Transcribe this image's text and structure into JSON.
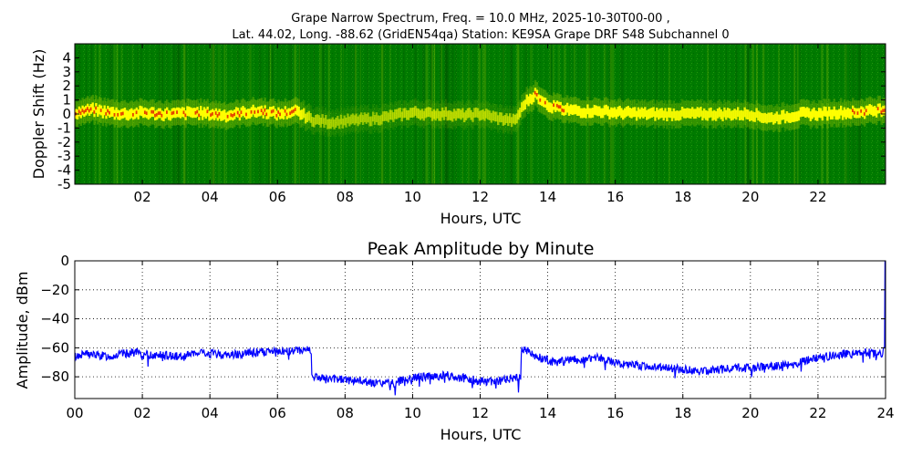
{
  "chart_data": [
    {
      "type": "heatmap",
      "title_line1": "Grape Narrow Spectrum, Freq. = 10.0 MHz, 2025-10-30T00-00 ,",
      "title_line2": "Lat.  44.02, Long. -88.62 (GridEN54qa) Station: KE9SA Grape DRF S48 Subchannel 0",
      "xlabel": "Hours, UTC",
      "ylabel": "Doppler Shift (Hz)",
      "xlim": [
        0,
        24
      ],
      "ylim": [
        -5,
        5
      ],
      "x_ticks": [
        2,
        4,
        6,
        8,
        10,
        12,
        14,
        16,
        18,
        20,
        22
      ],
      "x_tick_labels": [
        "02",
        "04",
        "06",
        "08",
        "10",
        "12",
        "14",
        "16",
        "18",
        "20",
        "22"
      ],
      "y_ticks": [
        4,
        3,
        2,
        1,
        0,
        -1,
        -2,
        -3,
        -4,
        -5
      ],
      "y_tick_labels": [
        "4",
        "3",
        "2",
        "1",
        "0",
        "-1",
        "-2",
        "-3",
        "-4",
        "-5"
      ],
      "colors": {
        "background": "#007a00",
        "mid": "#a8d000",
        "peak": "#ffff00",
        "core": "#e02000"
      },
      "trace": {
        "hours": [
          0,
          0.5,
          1,
          1.5,
          2,
          2.5,
          3,
          3.5,
          4,
          4.5,
          5,
          5.5,
          6,
          6.5,
          7,
          7.5,
          8,
          8.5,
          9,
          9.5,
          10,
          10.5,
          11,
          11.5,
          12,
          12.5,
          13,
          13.3,
          13.6,
          14,
          14.5,
          15,
          15.5,
          16,
          17,
          18,
          19,
          20,
          20.5,
          21,
          21.5,
          22,
          22.5,
          23,
          23.5,
          23.8
        ],
        "doppler": [
          0.1,
          0.3,
          0.1,
          0.0,
          0.1,
          0.0,
          0.0,
          0.1,
          0.0,
          -0.1,
          0.1,
          0.2,
          0.0,
          0.2,
          -0.4,
          -0.6,
          -0.5,
          -0.4,
          -0.3,
          -0.1,
          0.1,
          0.0,
          0.0,
          -0.1,
          0.0,
          -0.3,
          -0.5,
          0.8,
          1.4,
          0.6,
          0.3,
          0.2,
          0.2,
          0.1,
          0.0,
          0.0,
          0.0,
          0.0,
          -0.3,
          -0.2,
          0.0,
          0.0,
          0.1,
          0.1,
          0.2,
          0.3
        ],
        "strength": [
          0.9,
          0.95,
          0.9,
          0.9,
          0.9,
          0.9,
          0.9,
          0.9,
          0.9,
          0.85,
          0.9,
          0.95,
          0.9,
          0.9,
          0.35,
          0.3,
          0.3,
          0.3,
          0.3,
          0.35,
          0.4,
          0.4,
          0.4,
          0.4,
          0.35,
          0.35,
          0.4,
          0.7,
          0.85,
          0.9,
          0.85,
          0.85,
          0.85,
          0.8,
          0.75,
          0.7,
          0.7,
          0.7,
          0.7,
          0.75,
          0.8,
          0.8,
          0.85,
          0.85,
          0.9,
          0.9
        ]
      }
    },
    {
      "type": "line",
      "title": "Peak Amplitude by Minute",
      "xlabel": "Hours, UTC",
      "ylabel": "Amplitude, dBm",
      "xlim": [
        0,
        24
      ],
      "ylim": [
        -95,
        0
      ],
      "grid": true,
      "x_ticks": [
        0,
        2,
        4,
        6,
        8,
        10,
        12,
        14,
        16,
        18,
        20,
        22,
        24
      ],
      "x_tick_labels": [
        "00",
        "02",
        "04",
        "06",
        "08",
        "10",
        "12",
        "14",
        "16",
        "18",
        "20",
        "22",
        "24"
      ],
      "y_ticks": [
        0,
        -20,
        -40,
        -60,
        -80
      ],
      "y_tick_labels": [
        "0",
        "−20",
        "−40",
        "−60",
        "−80"
      ],
      "line_color": "#0000ff",
      "series": [
        {
          "name": "Peak Amplitude",
          "x": [
            0,
            0.3,
            0.6,
            1,
            1.5,
            1.8,
            2,
            2.5,
            3,
            3.3,
            3.7,
            4,
            4.5,
            5,
            5.5,
            6,
            6.5,
            6.8,
            7.0,
            7.1,
            7.5,
            8,
            8.5,
            9,
            9.5,
            10,
            10.5,
            11,
            11.5,
            12,
            12.5,
            13,
            13.2,
            13.4,
            13.8,
            14.2,
            14.8,
            15.5,
            16,
            16.5,
            17,
            17.5,
            18,
            18.5,
            19,
            19.5,
            20,
            20.5,
            21,
            21.5,
            22,
            22.5,
            23,
            23.5,
            23.9,
            23.97,
            24
          ],
          "y": [
            -66,
            -64,
            -65,
            -66,
            -64,
            -63,
            -65,
            -65,
            -66,
            -65,
            -64,
            -64,
            -65,
            -64,
            -63,
            -63,
            -62,
            -61,
            -62,
            -80,
            -82,
            -82,
            -83,
            -85,
            -84,
            -80,
            -80,
            -79,
            -81,
            -83,
            -83,
            -81,
            -80,
            -62,
            -67,
            -70,
            -68,
            -67,
            -70,
            -72,
            -73,
            -74,
            -75,
            -76,
            -75,
            -74,
            -74,
            -73,
            -72,
            -70,
            -67,
            -65,
            -64,
            -63,
            -65,
            -60,
            0
          ]
        }
      ]
    }
  ]
}
